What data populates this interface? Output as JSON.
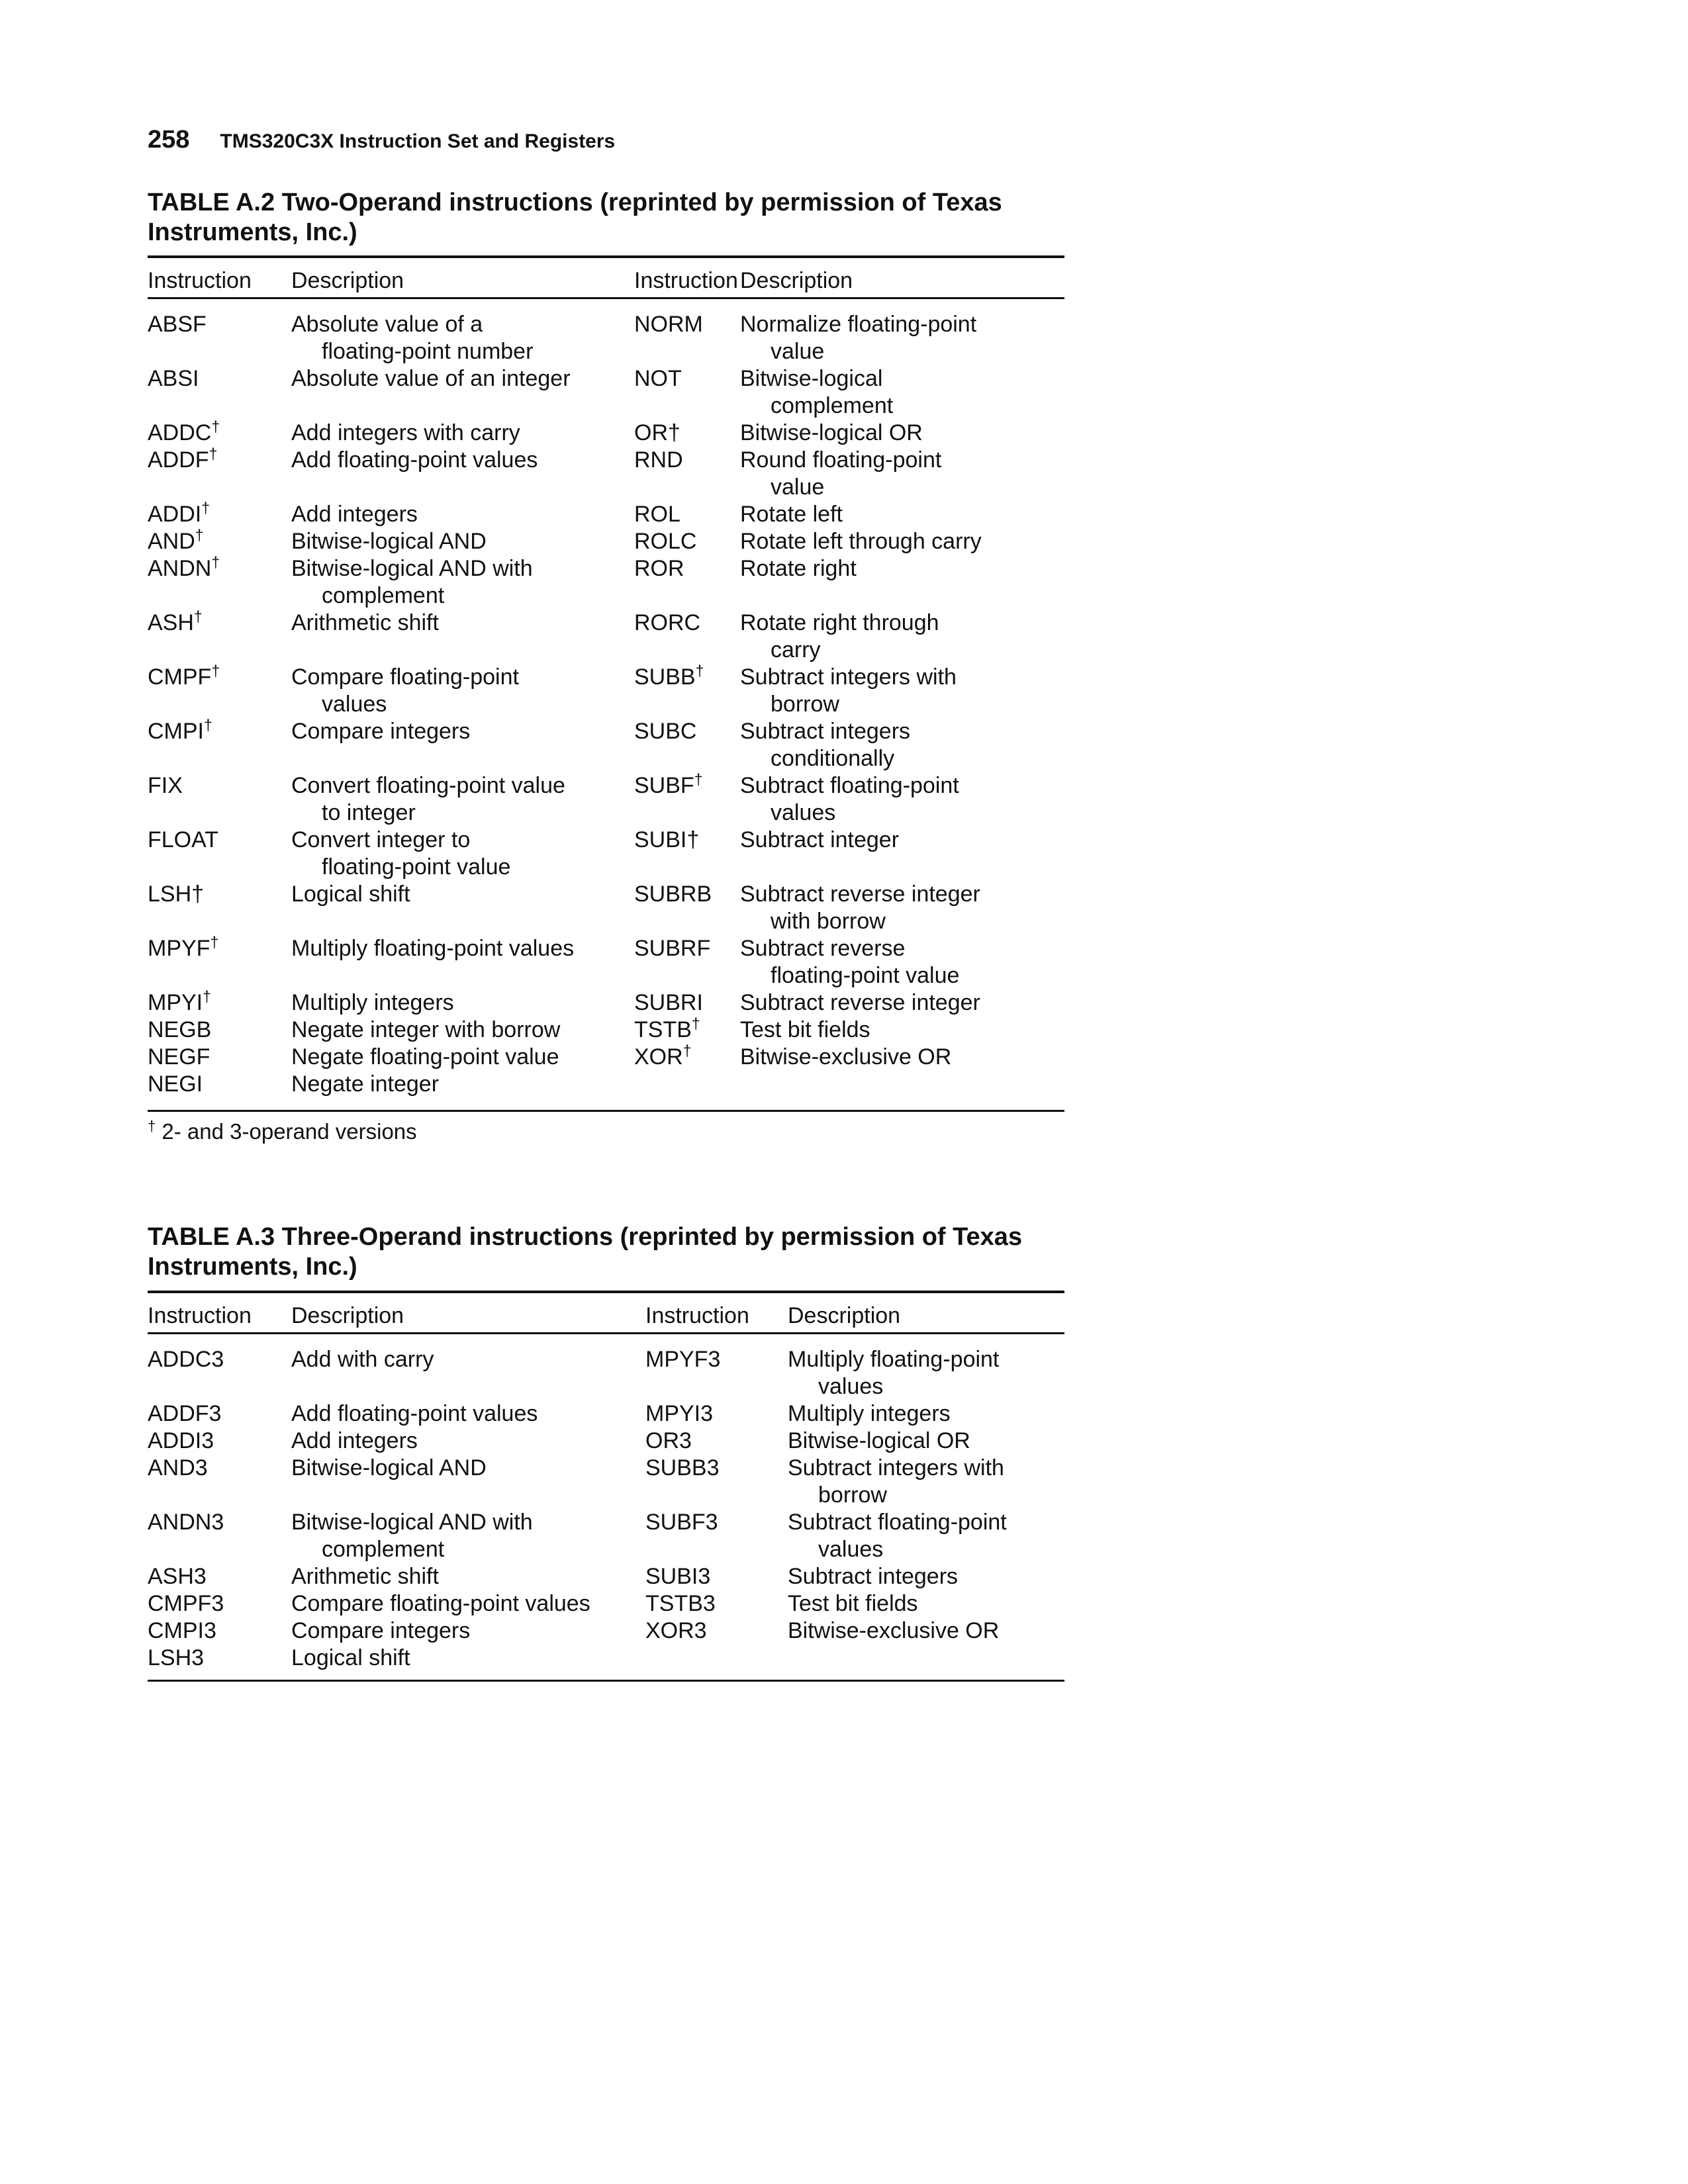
{
  "page": {
    "number": "258",
    "header_title": "TMS320C3X Instruction Set and Registers"
  },
  "tables": [
    {
      "title_lines": [
        "TABLE A.2  Two-Operand instructions (reprinted by permission of Texas",
        "Instruments, Inc.)"
      ],
      "columns": [
        "Instruction",
        "Description",
        "Instruction",
        "Description"
      ],
      "rows": [
        {
          "left": {
            "inst": "ABSF",
            "sup": "",
            "desc": [
              "Absolute value of a",
              "floating-point number"
            ]
          },
          "right": {
            "inst": "NORM",
            "sup": "",
            "desc": [
              "Normalize floating-point",
              "value"
            ]
          }
        },
        {
          "left": {
            "inst": "ABSI",
            "sup": "",
            "desc": [
              "Absolute value of an integer"
            ]
          },
          "right": {
            "inst": "NOT",
            "sup": "",
            "desc": [
              "Bitwise-logical",
              "complement"
            ]
          }
        },
        {
          "left": {
            "inst": "ADDC",
            "sup": "†",
            "desc": [
              "Add integers with carry"
            ]
          },
          "right": {
            "inst": "OR†",
            "sup": "",
            "desc": [
              "Bitwise-logical OR"
            ]
          }
        },
        {
          "left": {
            "inst": "ADDF",
            "sup": "†",
            "desc": [
              "Add floating-point values"
            ]
          },
          "right": {
            "inst": "RND",
            "sup": "",
            "desc": [
              "Round floating-point",
              "value"
            ]
          }
        },
        {
          "left": {
            "inst": "ADDI",
            "sup": "†",
            "desc": [
              "Add integers"
            ]
          },
          "right": {
            "inst": "ROL",
            "sup": "",
            "desc": [
              "Rotate left"
            ]
          }
        },
        {
          "left": {
            "inst": "AND",
            "sup": "†",
            "desc": [
              "Bitwise-logical AND"
            ]
          },
          "right": {
            "inst": "ROLC",
            "sup": "",
            "desc": [
              "Rotate left through carry"
            ]
          }
        },
        {
          "left": {
            "inst": "ANDN",
            "sup": "†",
            "desc": [
              "Bitwise-logical AND with",
              "complement"
            ]
          },
          "right": {
            "inst": "ROR",
            "sup": "",
            "desc": [
              "Rotate right"
            ]
          }
        },
        {
          "left": {
            "inst": "ASH",
            "sup": "†",
            "desc": [
              "Arithmetic shift"
            ]
          },
          "right": {
            "inst": "RORC",
            "sup": "",
            "desc": [
              "Rotate right through",
              "carry"
            ]
          }
        },
        {
          "left": {
            "inst": "CMPF",
            "sup": "†",
            "desc": [
              "Compare floating-point",
              "values"
            ]
          },
          "right": {
            "inst": "SUBB",
            "sup": "†",
            "desc": [
              "Subtract integers with",
              "borrow"
            ]
          }
        },
        {
          "left": {
            "inst": "CMPI",
            "sup": "†",
            "desc": [
              "Compare integers"
            ]
          },
          "right": {
            "inst": "SUBC",
            "sup": "",
            "desc": [
              "Subtract integers",
              "conditionally"
            ]
          }
        },
        {
          "left": {
            "inst": "FIX",
            "sup": "",
            "desc": [
              "Convert floating-point value",
              "to integer"
            ]
          },
          "right": {
            "inst": "SUBF",
            "sup": "†",
            "desc": [
              "Subtract floating-point",
              "values"
            ]
          }
        },
        {
          "left": {
            "inst": "FLOAT",
            "sup": "",
            "desc": [
              "Convert integer to",
              "floating-point value"
            ]
          },
          "right": {
            "inst": "SUBI†",
            "sup": "",
            "desc": [
              "Subtract integer"
            ]
          }
        },
        {
          "left": {
            "inst": "LSH†",
            "sup": "",
            "desc": [
              "Logical shift"
            ]
          },
          "right": {
            "inst": "SUBRB",
            "sup": "",
            "desc": [
              "Subtract reverse integer",
              "with borrow"
            ]
          }
        },
        {
          "left": {
            "inst": "MPYF",
            "sup": "†",
            "desc": [
              "Multiply floating-point values"
            ]
          },
          "right": {
            "inst": "SUBRF",
            "sup": "",
            "desc": [
              "Subtract reverse",
              "floating-point value"
            ]
          }
        },
        {
          "left": {
            "inst": "MPYI",
            "sup": "†",
            "desc": [
              "Multiply integers"
            ]
          },
          "right": {
            "inst": "SUBRI",
            "sup": "",
            "desc": [
              "Subtract reverse integer"
            ]
          }
        },
        {
          "left": {
            "inst": "NEGB",
            "sup": "",
            "desc": [
              "Negate integer with borrow"
            ]
          },
          "right": {
            "inst": "TSTB",
            "sup": "†",
            "desc": [
              "Test bit fields"
            ]
          }
        },
        {
          "left": {
            "inst": "NEGF",
            "sup": "",
            "desc": [
              "Negate floating-point value"
            ]
          },
          "right": {
            "inst": "XOR",
            "sup": "†",
            "desc": [
              "Bitwise-exclusive OR"
            ]
          }
        },
        {
          "left": {
            "inst": "NEGI",
            "sup": "",
            "desc": [
              "Negate integer"
            ]
          },
          "right": null
        }
      ],
      "footnote": {
        "symbol": "†",
        "text": "2- and 3-operand versions"
      }
    },
    {
      "title_lines": [
        "TABLE A.3  Three-Operand instructions (reprinted by permission of Texas",
        "Instruments, Inc.)"
      ],
      "columns": [
        "Instruction",
        "Description",
        "Instruction",
        "Description"
      ],
      "rows": [
        {
          "left": {
            "inst": "ADDC3",
            "sup": "",
            "desc": [
              "Add with carry"
            ]
          },
          "right": {
            "inst": "MPYF3",
            "sup": "",
            "desc": [
              "Multiply floating-point",
              "values"
            ]
          }
        },
        {
          "left": {
            "inst": "ADDF3",
            "sup": "",
            "desc": [
              "Add floating-point values"
            ]
          },
          "right": {
            "inst": "MPYI3",
            "sup": "",
            "desc": [
              "Multiply integers"
            ]
          }
        },
        {
          "left": {
            "inst": "ADDI3",
            "sup": "",
            "desc": [
              "Add integers"
            ]
          },
          "right": {
            "inst": "OR3",
            "sup": "",
            "desc": [
              "Bitwise-logical OR"
            ]
          }
        },
        {
          "left": {
            "inst": "AND3",
            "sup": "",
            "desc": [
              "Bitwise-logical AND"
            ]
          },
          "right": {
            "inst": "SUBB3",
            "sup": "",
            "desc": [
              "Subtract integers with",
              "borrow"
            ]
          }
        },
        {
          "left": {
            "inst": "ANDN3",
            "sup": "",
            "desc": [
              "Bitwise-logical AND with",
              "complement"
            ]
          },
          "right": {
            "inst": "SUBF3",
            "sup": "",
            "desc": [
              "Subtract floating-point",
              "values"
            ]
          }
        },
        {
          "left": {
            "inst": "ASH3",
            "sup": "",
            "desc": [
              "Arithmetic shift"
            ]
          },
          "right": {
            "inst": "SUBI3",
            "sup": "",
            "desc": [
              "Subtract integers"
            ]
          }
        },
        {
          "left": {
            "inst": "CMPF3",
            "sup": "",
            "desc": [
              "Compare floating-point values"
            ]
          },
          "right": {
            "inst": "TSTB3",
            "sup": "",
            "desc": [
              "Test bit fields"
            ]
          }
        },
        {
          "left": {
            "inst": "CMPI3",
            "sup": "",
            "desc": [
              "Compare integers"
            ]
          },
          "right": {
            "inst": "XOR3",
            "sup": "",
            "desc": [
              "Bitwise-exclusive OR"
            ]
          }
        },
        {
          "left": {
            "inst": "LSH3",
            "sup": "",
            "desc": [
              "Logical shift"
            ]
          },
          "right": null
        }
      ]
    }
  ]
}
